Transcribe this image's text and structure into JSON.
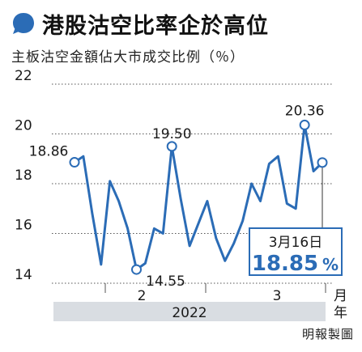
{
  "header": {
    "title": "港股沽空比率企於高位",
    "subtitle": "主板沽空金額佔大市成交比例（％）"
  },
  "byline": "明報製圖",
  "colors": {
    "line": "#2b6cb6",
    "bubble": "#2b6cb6",
    "callout_border": "#2b6cb6",
    "callout_value": "#2b6cb6",
    "year_band": "#d9dde2",
    "grid": "#555555",
    "text": "#1a1a1a"
  },
  "chart_data": {
    "type": "line",
    "y_axis": {
      "min": 14,
      "max": 22,
      "ticks": [
        "22",
        "20",
        "18",
        "16",
        "14"
      ]
    },
    "x_axis": {
      "unit_label": "月",
      "year_unit_label": "年",
      "year_label": "2022",
      "month_labels": [
        "2",
        "3"
      ]
    },
    "values": [
      18.86,
      19.1,
      16.8,
      14.75,
      18.1,
      17.3,
      16.2,
      14.55,
      14.8,
      16.2,
      16.0,
      19.5,
      17.4,
      15.5,
      16.4,
      17.3,
      15.8,
      14.9,
      15.6,
      16.5,
      18.0,
      17.3,
      18.8,
      19.1,
      17.2,
      17.0,
      20.36,
      18.5,
      18.85
    ],
    "annotations": [
      {
        "index": 0,
        "label": "18.86"
      },
      {
        "index": 7,
        "label": "14.55"
      },
      {
        "index": 11,
        "label": "19.50"
      },
      {
        "index": 26,
        "label": "20.36"
      },
      {
        "index": 28
      }
    ],
    "callout": {
      "date": "3月16日",
      "value": "18.85",
      "unit": "%"
    }
  }
}
